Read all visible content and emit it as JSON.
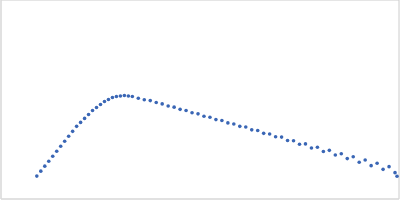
{
  "chart_data": {
    "type": "scatter",
    "x": [
      36,
      40,
      44,
      48,
      52,
      56,
      60,
      64,
      68,
      72,
      76,
      80,
      84,
      88,
      92,
      96,
      100,
      104,
      108,
      112,
      116,
      120,
      124,
      128,
      132,
      138,
      144,
      150,
      156,
      162,
      168,
      174,
      180,
      186,
      192,
      198,
      204,
      210,
      216,
      222,
      228,
      234,
      240,
      246,
      252,
      258,
      264,
      270,
      276,
      282,
      288,
      294,
      300,
      306,
      312,
      318,
      324,
      330,
      336,
      342,
      348,
      354,
      360,
      366,
      372,
      378,
      384,
      390,
      396,
      398
    ],
    "values": [
      23,
      28,
      33,
      38,
      43,
      48,
      53,
      58,
      63,
      68,
      73,
      77,
      81,
      85,
      89,
      92,
      95,
      98,
      100,
      102,
      103,
      103.5,
      104,
      103.5,
      103,
      101.2,
      99.8,
      98.9,
      97.0,
      95.6,
      93.5,
      92.3,
      90.1,
      88.9,
      86.7,
      85.6,
      83.2,
      82.1,
      79.8,
      78.9,
      76.5,
      75.4,
      73.0,
      72.3,
      69.5,
      68.9,
      66.0,
      65.4,
      62.5,
      62.2,
      58.8,
      58.6,
      55.0,
      55.4,
      51.2,
      52.0,
      47.8,
      48.9,
      44.2,
      45.5,
      40.6,
      42.4,
      37.0,
      39.2,
      33.5,
      36.0,
      29.8,
      32.5,
      26.5,
      22.8
    ],
    "color": "#3a66b5",
    "marker": "circle",
    "xlim": [
      0,
      400
    ],
    "ylim": [
      0,
      200
    ],
    "xticks": [
      115
    ],
    "yticks": [
      100
    ],
    "grid": true,
    "tick_labels": false
  }
}
